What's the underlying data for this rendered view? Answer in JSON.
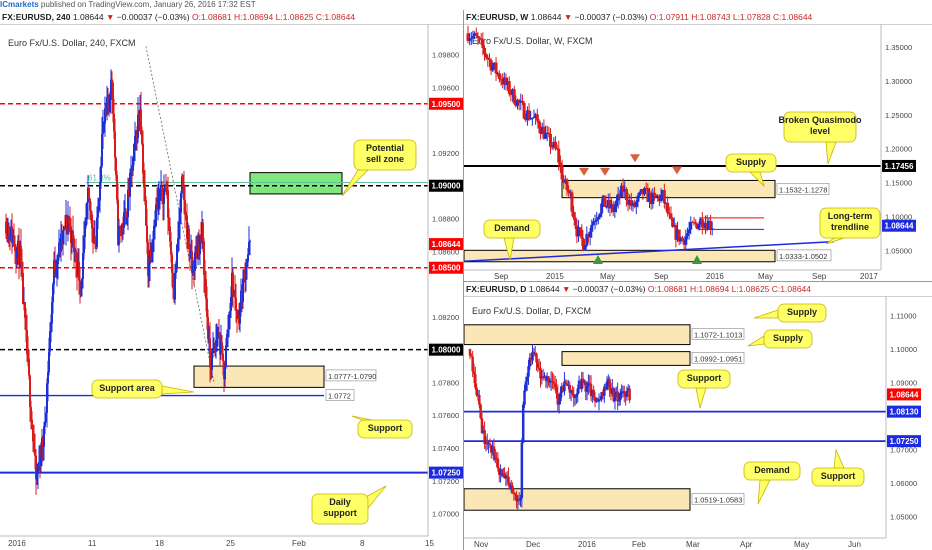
{
  "topbar": {
    "brand": "ICmarkets",
    "text": "published on TradingView.com, January 26, 2016 17:32 EST"
  },
  "colors": {
    "up": "#1e2fd6",
    "down": "#d81b1b",
    "zone_fill": "#fbe7b5",
    "sell_zone_fill": "#7ee77e",
    "callout_fill": "#ffff66",
    "resistance": "#ff0000",
    "support": "#1d2be0",
    "dark_line": "#000000",
    "fib": "#5fbf9a"
  },
  "panels": {
    "h4": {
      "header": {
        "sym": "FX:EURUSD, 240",
        "price": "1.08644",
        "arrow": "▼",
        "change": "−0.00037 (−0.03%)",
        "o": "O:1.08681",
        "h": "H:1.08694",
        "l": "L:1.08625",
        "c": "C:1.08644"
      },
      "title": "Euro Fx/U.S. Dollar, 240, FXCM",
      "xticks": [
        "2016",
        "11",
        "18",
        "25",
        "Feb",
        "8",
        "15"
      ],
      "yticks": [
        "1.09800",
        "1.09600",
        "1.09200",
        "1.09000",
        "1.08800",
        "1.08600",
        "1.08200",
        "1.08000",
        "1.07800",
        "1.07600",
        "1.07400",
        "1.07200",
        "1.07000"
      ],
      "price_tags": [
        {
          "text": "1.09500",
          "style": "red"
        },
        {
          "text": "1.09000",
          "style": "black"
        },
        {
          "text": "1.08644",
          "style": "red"
        },
        {
          "text": "1.08500",
          "style": "red"
        },
        {
          "text": "1.08000",
          "style": "black"
        },
        {
          "text": "1.07250",
          "style": "blue"
        }
      ],
      "labels": {
        "fib": "61.8%",
        "zone": "1.0777-1.0790",
        "support_value": "1.0772"
      },
      "callouts": {
        "sell_zone": "Potential sell zone",
        "support_area": "Support area",
        "support": "Support",
        "daily_support": "Daily support"
      }
    },
    "weekly": {
      "header": {
        "sym": "FX:EURUSD, W",
        "price": "1.08644",
        "arrow": "▼",
        "change": "−0.00037 (−0.03%)",
        "o": "O:1.07911",
        "h": "H:1.08743",
        "l": "L:1.07828",
        "c": "C:1.08644"
      },
      "title": "Euro Fx/U.S. Dollar, W, FXCM",
      "xticks": [
        "Sep",
        "2015",
        "May",
        "Sep",
        "2016",
        "May",
        "Sep",
        "2017"
      ],
      "yticks": [
        "1.35000",
        "1.30000",
        "1.25000",
        "1.20000",
        "1.15000",
        "1.10000",
        "1.05000"
      ],
      "price_tags": [
        {
          "text": "1.17456",
          "style": "black"
        },
        {
          "text": "1.08644",
          "style": "blue"
        }
      ],
      "labels": {
        "supply_zone": "1.1532-1.1278",
        "demand_zone": "1.0333-1.0502"
      },
      "callouts": {
        "broken_qm": "Broken Quasimodo level",
        "supply": "Supply",
        "trendline": "Long-term trendline",
        "demand": "Demand"
      }
    },
    "daily": {
      "header": {
        "sym": "FX:EURUSD, D",
        "price": "1.08644",
        "arrow": "▼",
        "change": "−0.00037 (−0.03%)",
        "o": "O:1.08681",
        "h": "H:1.08694",
        "l": "L:1.08625",
        "c": "C:1.08644"
      },
      "title": "Euro Fx/U.S. Dollar, D, FXCM",
      "xticks": [
        "Nov",
        "Dec",
        "2016",
        "Feb",
        "Mar",
        "Apr",
        "May",
        "Jun"
      ],
      "yticks": [
        "1.11000",
        "1.10000",
        "1.09000",
        "1.07000",
        "1.06000",
        "1.05000"
      ],
      "price_tags": [
        {
          "text": "1.08644",
          "style": "red"
        },
        {
          "text": "1.08130",
          "style": "blue"
        },
        {
          "text": "1.07250",
          "style": "blue"
        }
      ],
      "labels": {
        "supply1": "1.1072-1.1013",
        "supply2": "1.0992-1.0951",
        "demand_zone": "1.0519-1.0583"
      },
      "callouts": {
        "supply1": "Supply",
        "supply2": "Supply",
        "support": "Support",
        "support2": "Support",
        "demand": "Demand"
      }
    }
  },
  "chart_data": [
    {
      "type": "candlestick",
      "title": "Euro Fx/U.S. Dollar, 240, FXCM",
      "ylim": [
        1.069,
        1.0995
      ],
      "levels": [
        {
          "price": 1.095,
          "kind": "resistance"
        },
        {
          "price": 1.09,
          "kind": "round number"
        },
        {
          "price": 1.085,
          "kind": "resistance"
        },
        {
          "price": 1.08,
          "kind": "round number"
        },
        {
          "price": 1.0772,
          "kind": "support"
        },
        {
          "price": 1.0725,
          "kind": "daily support"
        }
      ],
      "zones": [
        {
          "name": "Potential sell zone",
          "range": [
            1.0895,
            1.0908
          ]
        },
        {
          "name": "Support area",
          "range": [
            1.0777,
            1.079
          ]
        }
      ],
      "fib": {
        "level": "61.8%",
        "price": 1.0902
      },
      "close_path": [
        [
          0,
          1.0878
        ],
        [
          14,
          1.0857
        ],
        [
          30,
          1.072
        ],
        [
          38,
          1.0748
        ],
        [
          48,
          1.085
        ],
        [
          62,
          1.088
        ],
        [
          75,
          1.084
        ],
        [
          82,
          1.0892
        ],
        [
          90,
          1.0863
        ],
        [
          96,
          1.093
        ],
        [
          106,
          1.0965
        ],
        [
          112,
          1.087
        ],
        [
          120,
          1.0882
        ],
        [
          128,
          1.092
        ],
        [
          134,
          1.095
        ],
        [
          142,
          1.085
        ],
        [
          150,
          1.0886
        ],
        [
          160,
          1.09
        ],
        [
          168,
          1.0835
        ],
        [
          176,
          1.09
        ],
        [
          186,
          1.0848
        ],
        [
          196,
          1.0872
        ],
        [
          204,
          1.079
        ],
        [
          212,
          1.081
        ],
        [
          218,
          1.0786
        ],
        [
          226,
          1.0842
        ],
        [
          232,
          1.0818
        ],
        [
          240,
          1.0853
        ],
        [
          244,
          1.0864
        ]
      ]
    },
    {
      "type": "candlestick",
      "title": "Euro Fx/U.S. Dollar, W, FXCM",
      "ylim": [
        1.03,
        1.375
      ],
      "levels": [
        {
          "price": 1.17456,
          "kind": "broken Quasimodo level"
        }
      ],
      "zones": [
        {
          "name": "Supply",
          "range": [
            1.1278,
            1.1532
          ]
        },
        {
          "name": "Demand",
          "range": [
            1.0333,
            1.0502
          ]
        }
      ],
      "trendline": [
        [
          2014.6,
          1.034
        ],
        [
          2016.3,
          1.065
        ]
      ],
      "close_path": [
        [
          0,
          1.37
        ],
        [
          6,
          1.36
        ],
        [
          14,
          1.325
        ],
        [
          24,
          1.29
        ],
        [
          34,
          1.255
        ],
        [
          42,
          1.24
        ],
        [
          48,
          1.215
        ],
        [
          54,
          1.195
        ],
        [
          58,
          1.15
        ],
        [
          62,
          1.13
        ],
        [
          66,
          1.08
        ],
        [
          70,
          1.06
        ],
        [
          76,
          1.095
        ],
        [
          82,
          1.12
        ],
        [
          88,
          1.11
        ],
        [
          94,
          1.14
        ],
        [
          100,
          1.112
        ],
        [
          106,
          1.135
        ],
        [
          112,
          1.125
        ],
        [
          118,
          1.13
        ],
        [
          124,
          1.08
        ],
        [
          130,
          1.065
        ],
        [
          136,
          1.085
        ],
        [
          142,
          1.095
        ],
        [
          148,
          1.088
        ]
      ]
    },
    {
      "type": "candlestick",
      "title": "Euro Fx/U.S. Dollar, D, FXCM",
      "ylim": [
        1.046,
        1.114
      ],
      "levels": [
        {
          "price": 1.0813,
          "kind": "support"
        },
        {
          "price": 1.0725,
          "kind": "support"
        }
      ],
      "zones": [
        {
          "name": "Supply",
          "range": [
            1.1013,
            1.1072
          ]
        },
        {
          "name": "Supply",
          "range": [
            1.0951,
            1.0992
          ]
        },
        {
          "name": "Demand",
          "range": [
            1.0519,
            1.0583
          ]
        }
      ],
      "close_path": [
        [
          0,
          1.1
        ],
        [
          6,
          1.085
        ],
        [
          10,
          1.074
        ],
        [
          16,
          1.07
        ],
        [
          22,
          1.064
        ],
        [
          28,
          1.06
        ],
        [
          34,
          1.056
        ],
        [
          38,
          1.056
        ],
        [
          40,
          1.085
        ],
        [
          44,
          1.095
        ],
        [
          48,
          1.098
        ],
        [
          54,
          1.09
        ],
        [
          60,
          1.092
        ],
        [
          66,
          1.085
        ],
        [
          72,
          1.09
        ],
        [
          78,
          1.086
        ],
        [
          84,
          1.09
        ],
        [
          90,
          1.088
        ],
        [
          96,
          1.083
        ],
        [
          100,
          1.088
        ],
        [
          104,
          1.09
        ],
        [
          108,
          1.086
        ],
        [
          112,
          1.085
        ],
        [
          116,
          1.087
        ],
        [
          120,
          1.0864
        ]
      ]
    }
  ]
}
